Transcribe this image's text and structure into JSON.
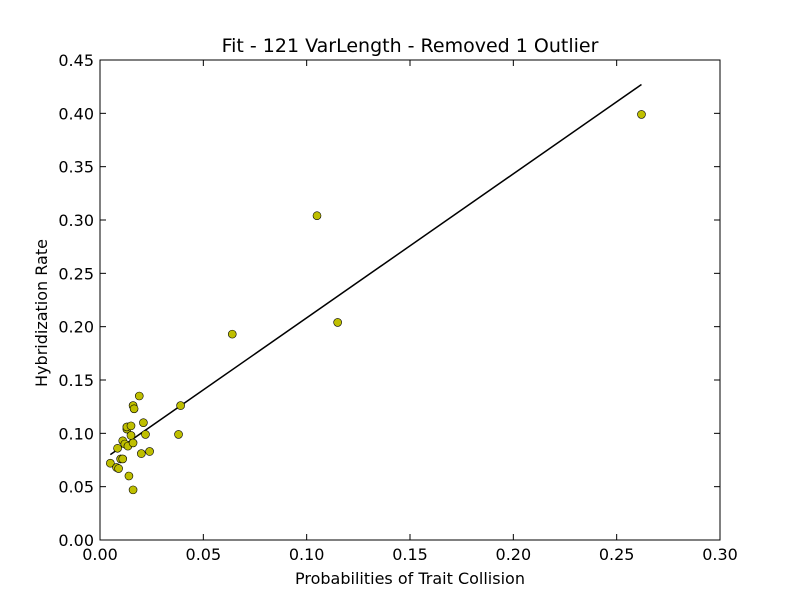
{
  "chart_data": {
    "type": "scatter",
    "title": "Fit - 121 VarLength - Removed 1 Outlier",
    "xlabel": "Probabilities of Trait Collision",
    "ylabel": "Hybridization Rate",
    "xlim": [
      0.0,
      0.3
    ],
    "ylim": [
      0.0,
      0.45
    ],
    "xticks": [
      "0.00",
      "0.05",
      "0.10",
      "0.15",
      "0.20",
      "0.25",
      "0.30"
    ],
    "yticks": [
      "0.00",
      "0.05",
      "0.10",
      "0.15",
      "0.20",
      "0.25",
      "0.30",
      "0.35",
      "0.40",
      "0.45"
    ],
    "grid": false,
    "legend": "none",
    "marker_color": "#bfbf00",
    "line_color": "#000000",
    "series": [
      {
        "kind": "points",
        "points": [
          [
            0.005,
            0.072
          ],
          [
            0.008,
            0.068
          ],
          [
            0.009,
            0.067
          ],
          [
            0.0085,
            0.086
          ],
          [
            0.01,
            0.076
          ],
          [
            0.011,
            0.076
          ],
          [
            0.011,
            0.093
          ],
          [
            0.012,
            0.09
          ],
          [
            0.013,
            0.104
          ],
          [
            0.013,
            0.106
          ],
          [
            0.0135,
            0.088
          ],
          [
            0.014,
            0.06
          ],
          [
            0.015,
            0.098
          ],
          [
            0.015,
            0.107
          ],
          [
            0.016,
            0.047
          ],
          [
            0.016,
            0.091
          ],
          [
            0.016,
            0.126
          ],
          [
            0.0165,
            0.123
          ],
          [
            0.019,
            0.135
          ],
          [
            0.02,
            0.081
          ],
          [
            0.021,
            0.11
          ],
          [
            0.022,
            0.099
          ],
          [
            0.024,
            0.083
          ],
          [
            0.038,
            0.099
          ],
          [
            0.039,
            0.126
          ],
          [
            0.064,
            0.193
          ],
          [
            0.105,
            0.304
          ],
          [
            0.115,
            0.204
          ],
          [
            0.262,
            0.399
          ]
        ]
      },
      {
        "kind": "fit-line",
        "points": [
          [
            0.005,
            0.08
          ],
          [
            0.262,
            0.427
          ]
        ]
      }
    ]
  }
}
